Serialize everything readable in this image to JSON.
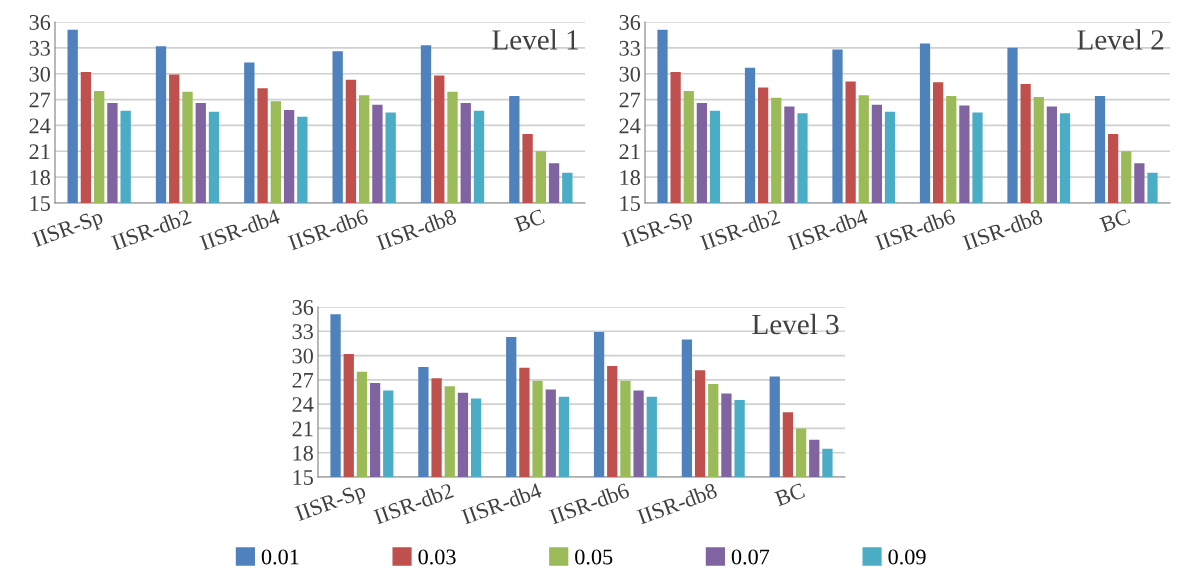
{
  "chart_data": [
    {
      "type": "bar",
      "title": "Level 1",
      "categories": [
        "IISR-Sp",
        "IISR-db2",
        "IISR-db4",
        "IISR-db6",
        "IISR-db8",
        "BC"
      ],
      "ylim": [
        15,
        36
      ],
      "yticks": [
        15,
        18,
        21,
        24,
        27,
        30,
        33,
        36
      ],
      "grid": "y",
      "series": [
        {
          "color": "#4f81bd",
          "values": [
            35.1,
            33.2,
            31.3,
            32.6,
            33.3,
            27.4
          ]
        },
        {
          "color": "#c0504d",
          "values": [
            30.2,
            29.9,
            28.3,
            29.3,
            29.8,
            23.0
          ]
        },
        {
          "color": "#9bbb59",
          "values": [
            28.0,
            27.9,
            26.8,
            27.5,
            27.9,
            21.0
          ]
        },
        {
          "color": "#8064a2",
          "values": [
            26.6,
            26.6,
            25.8,
            26.4,
            26.6,
            19.6
          ]
        },
        {
          "color": "#4bacc6",
          "values": [
            25.7,
            25.6,
            25.0,
            25.5,
            25.7,
            18.5
          ]
        }
      ]
    },
    {
      "type": "bar",
      "title": "Level 2",
      "categories": [
        "IISR-Sp",
        "IISR-db2",
        "IISR-db4",
        "IISR-db6",
        "IISR-db8",
        "BC"
      ],
      "ylim": [
        15,
        36
      ],
      "yticks": [
        15,
        18,
        21,
        24,
        27,
        30,
        33,
        36
      ],
      "grid": "y",
      "series": [
        {
          "color": "#4f81bd",
          "values": [
            35.1,
            30.7,
            32.8,
            33.5,
            33.0,
            27.4
          ]
        },
        {
          "color": "#c0504d",
          "values": [
            30.2,
            28.4,
            29.1,
            29.0,
            28.8,
            23.0
          ]
        },
        {
          "color": "#9bbb59",
          "values": [
            28.0,
            27.2,
            27.5,
            27.4,
            27.3,
            21.0
          ]
        },
        {
          "color": "#8064a2",
          "values": [
            26.6,
            26.2,
            26.4,
            26.3,
            26.2,
            19.6
          ]
        },
        {
          "color": "#4bacc6",
          "values": [
            25.7,
            25.4,
            25.6,
            25.5,
            25.4,
            18.5
          ]
        }
      ]
    },
    {
      "type": "bar",
      "title": "Level 3",
      "categories": [
        "IISR-Sp",
        "IISR-db2",
        "IISR-db4",
        "IISR-db6",
        "IISR-db8",
        "BC"
      ],
      "ylim": [
        15,
        36
      ],
      "yticks": [
        15,
        18,
        21,
        24,
        27,
        30,
        33,
        36
      ],
      "grid": "y",
      "legend": "bottom",
      "series": [
        {
          "name": "0.01",
          "color": "#4f81bd",
          "values": [
            35.1,
            28.6,
            32.3,
            32.9,
            32.0,
            27.4
          ]
        },
        {
          "name": "0.03",
          "color": "#c0504d",
          "values": [
            30.2,
            27.2,
            28.5,
            28.7,
            28.2,
            23.0
          ]
        },
        {
          "name": "0.05",
          "color": "#9bbb59",
          "values": [
            28.0,
            26.2,
            26.9,
            26.9,
            26.5,
            21.0
          ]
        },
        {
          "name": "0.07",
          "color": "#8064a2",
          "values": [
            26.6,
            25.4,
            25.8,
            25.7,
            25.3,
            19.6
          ]
        },
        {
          "name": "0.09",
          "color": "#4bacc6",
          "values": [
            25.7,
            24.7,
            24.9,
            24.9,
            24.5,
            18.5
          ]
        }
      ]
    }
  ]
}
